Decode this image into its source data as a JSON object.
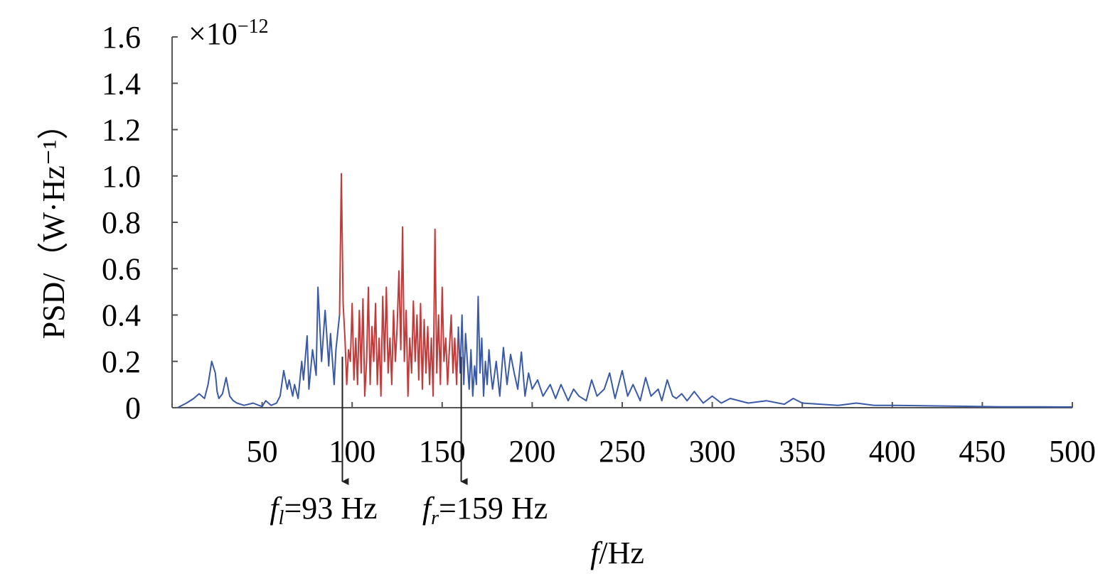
{
  "chart_data": {
    "type": "line",
    "title": "",
    "xlabel": {
      "var": "f",
      "unit": "/Hz"
    },
    "ylabel": "PSD/（W·Hz⁻¹）",
    "y_exponent": {
      "prefix": "×10",
      "power": "−12"
    },
    "xlim": [
      0,
      500
    ],
    "ylim": [
      0,
      1.6
    ],
    "x_ticks": [
      "50",
      "100",
      "150",
      "200",
      "250",
      "300",
      "350",
      "400",
      "450",
      "500"
    ],
    "y_ticks": [
      "0",
      "0.2",
      "0.4",
      "0.6",
      "0.8",
      "1.0",
      "1.2",
      "1.4",
      "1.6"
    ],
    "grid": false,
    "series": [
      {
        "color": "#3a5aa8",
        "x": [
          3,
          8,
          12,
          15,
          18,
          20,
          22,
          24,
          25,
          26,
          28,
          30,
          32,
          34,
          36,
          40,
          45,
          50,
          52,
          55,
          58,
          60,
          62,
          64,
          65,
          67,
          68,
          70,
          72,
          73,
          75,
          76,
          78,
          80,
          81,
          83,
          85,
          86,
          87,
          88,
          90,
          91,
          93
        ],
        "y": [
          0,
          0.02,
          0.04,
          0.06,
          0.04,
          0.1,
          0.2,
          0.15,
          0.07,
          0.04,
          0.06,
          0.13,
          0.05,
          0.03,
          0.02,
          0.01,
          0.02,
          0.005,
          0.03,
          0.01,
          0.02,
          0.05,
          0.16,
          0.08,
          0.12,
          0.05,
          0.1,
          0.04,
          0.2,
          0.12,
          0.31,
          0.08,
          0.25,
          0.14,
          0.52,
          0.2,
          0.42,
          0.3,
          0.18,
          0.32,
          0.1,
          0.25,
          0.4
        ]
      },
      {
        "color": "#c23b3b",
        "x": [
          93,
          94,
          95,
          96,
          97,
          98,
          99,
          100,
          101,
          102,
          103,
          104,
          105,
          106,
          107,
          108,
          109,
          110,
          111,
          112,
          113,
          114,
          115,
          116,
          117,
          118,
          119,
          120,
          121,
          122,
          123,
          124,
          125,
          126,
          127,
          128,
          129,
          130,
          131,
          132,
          133,
          134,
          135,
          136,
          137,
          138,
          139,
          140,
          141,
          142,
          143,
          144,
          145,
          146,
          147,
          148,
          149,
          150,
          151,
          152,
          153,
          154,
          155,
          156,
          157,
          158,
          159
        ],
        "y": [
          0.4,
          1.01,
          0.45,
          0.3,
          0.1,
          0.25,
          0.2,
          0.45,
          0.12,
          0.3,
          0.1,
          0.42,
          0.15,
          0.47,
          0.05,
          0.2,
          0.52,
          0.1,
          0.35,
          0.2,
          0.45,
          0.1,
          0.3,
          0.05,
          0.48,
          0.2,
          0.52,
          0.15,
          0.3,
          0.1,
          0.42,
          0.2,
          0.35,
          0.59,
          0.25,
          0.78,
          0.2,
          0.42,
          0.05,
          0.3,
          0.15,
          0.46,
          0.2,
          0.4,
          0.12,
          0.45,
          0.08,
          0.38,
          0.15,
          0.35,
          0.1,
          0.3,
          0.05,
          0.77,
          0.15,
          0.4,
          0.1,
          0.52,
          0.2,
          0.3,
          0.1,
          0.25,
          0.4,
          0.15,
          0.3,
          0.1,
          0.35
        ]
      },
      {
        "color": "#3a5aa8",
        "x": [
          159,
          160,
          161,
          162,
          163,
          164,
          165,
          166,
          167,
          168,
          169,
          170,
          171,
          172,
          173,
          174,
          175,
          176,
          177,
          178,
          180,
          182,
          184,
          186,
          188,
          190,
          192,
          194,
          196,
          198,
          200,
          203,
          206,
          210,
          213,
          216,
          220,
          223,
          226,
          230,
          233,
          236,
          240,
          243,
          246,
          250,
          253,
          256,
          260,
          263,
          266,
          270,
          272,
          275,
          278,
          280,
          283,
          286,
          290,
          295,
          300,
          305,
          310,
          320,
          330,
          340,
          345,
          350,
          360,
          370,
          380,
          390,
          400,
          420,
          440,
          460,
          480,
          500
        ],
        "y": [
          0.35,
          0.15,
          0.4,
          0.1,
          0.32,
          0.2,
          0.08,
          0.25,
          0.05,
          0.18,
          0.1,
          0.48,
          0.15,
          0.3,
          0.05,
          0.2,
          0.1,
          0.25,
          0.15,
          0.08,
          0.2,
          0.05,
          0.26,
          0.1,
          0.23,
          0.15,
          0.08,
          0.24,
          0.05,
          0.15,
          0.08,
          0.12,
          0.05,
          0.1,
          0.04,
          0.1,
          0.03,
          0.08,
          0.05,
          0.03,
          0.12,
          0.05,
          0.08,
          0.15,
          0.04,
          0.16,
          0.05,
          0.1,
          0.03,
          0.13,
          0.05,
          0.08,
          0.03,
          0.12,
          0.05,
          0.04,
          0.06,
          0.03,
          0.07,
          0.02,
          0.05,
          0.02,
          0.04,
          0.02,
          0.03,
          0.015,
          0.04,
          0.02,
          0.015,
          0.01,
          0.02,
          0.01,
          0.01,
          0.008,
          0.006,
          0.004,
          0.004,
          0.003
        ]
      }
    ],
    "annotations": [
      {
        "x": 93,
        "var": "f",
        "sub": "l",
        "text": "=93 Hz"
      },
      {
        "x": 159,
        "var": "f",
        "sub": "r",
        "text": "=159 Hz"
      }
    ]
  }
}
